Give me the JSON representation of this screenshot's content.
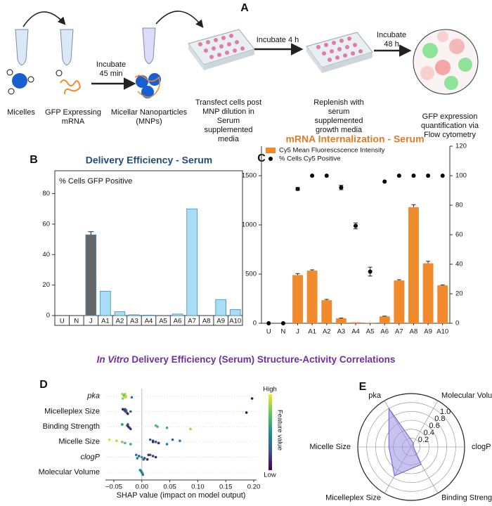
{
  "panel_labels": [
    "A",
    "B",
    "C",
    "D",
    "E"
  ],
  "workflow": {
    "reagents": [
      {
        "lines": [
          "Micelles"
        ]
      },
      {
        "lines": [
          "GFP Expressing",
          "mRNA"
        ]
      },
      {
        "lines": [
          "Micellar Nanoparticles",
          "(MNPs)"
        ]
      }
    ],
    "steps": [
      {
        "lines": [
          "Incubate",
          "45 min"
        ]
      },
      {
        "lines": [
          "Incubate 4 h"
        ]
      },
      {
        "lines": [
          "Incubate",
          "48 h"
        ]
      }
    ],
    "stages": [
      {
        "lines": [
          "Transfect cells post",
          "MNP dilution in",
          "Serum",
          "supplemented",
          "media"
        ]
      },
      {
        "lines": [
          "Replenish with",
          "serum",
          "supplemented",
          "growth media"
        ]
      },
      {
        "lines": [
          "GFP expression",
          "quantification via",
          "Flow cytometry"
        ]
      }
    ]
  },
  "section_title": {
    "italic": "In Vitro",
    "rest": " Delivery Efficiency (Serum) Structure-Activity Correlations"
  },
  "chart_data": [
    {
      "type": "bar",
      "title": "Delivery Efficiency - Serum",
      "ylabel": "% Cells GFP Positive",
      "categories": [
        "U",
        "N",
        "J",
        "A1",
        "A2",
        "A3",
        "A4",
        "A5",
        "A6",
        "A7",
        "A8",
        "A9",
        "A10"
      ],
      "values": [
        0,
        0,
        53,
        16,
        2.5,
        0.5,
        0.3,
        0,
        1,
        70,
        0,
        10.5,
        4
      ],
      "errors": [
        null,
        null,
        2,
        null,
        null,
        null,
        null,
        null,
        null,
        null,
        null,
        null,
        null
      ],
      "colors": [
        "#a9dcf5",
        "#a9dcf5",
        "#666666",
        "#a9dcf5",
        "#a9dcf5",
        "#a9dcf5",
        "#a9dcf5",
        "#a9dcf5",
        "#a9dcf5",
        "#a9dcf5",
        "#a9dcf5",
        "#a9dcf5",
        "#a9dcf5"
      ],
      "ylim": [
        0,
        95
      ],
      "yticks": [
        0,
        20,
        40,
        60,
        80
      ]
    },
    {
      "type": "combo",
      "title": "mRNA Internalization - Serum",
      "categories": [
        "U",
        "N",
        "J",
        "A1",
        "A2",
        "A3",
        "A4",
        "A5",
        "A6",
        "A7",
        "A8",
        "A9",
        "A10"
      ],
      "series": [
        {
          "name": "Cy5 Mean Fluorescscence Intensity",
          "kind": "bar",
          "color": "#f08a2c",
          "values": [
            0,
            0,
            490,
            535,
            235,
            50,
            10,
            5,
            70,
            435,
            1180,
            610,
            385
          ],
          "errors": [
            null,
            null,
            15,
            8,
            8,
            3,
            null,
            null,
            3,
            8,
            25,
            20,
            5
          ]
        },
        {
          "name": "% Cells Cy5 Positive",
          "kind": "scatter",
          "color": "#000000",
          "axis": "y2",
          "values": [
            0,
            0,
            91,
            100,
            100,
            92,
            66,
            35,
            96,
            100,
            100,
            100,
            100
          ],
          "errors": [
            null,
            null,
            1,
            null,
            null,
            1.5,
            2,
            3,
            null,
            null,
            null,
            null,
            null
          ]
        }
      ],
      "ylim": [
        0,
        1800
      ],
      "yticks": [
        0,
        500,
        1000,
        1500
      ],
      "y2lim": [
        0,
        120
      ],
      "y2ticks": [
        0,
        20,
        40,
        60,
        80,
        100,
        120
      ]
    },
    {
      "type": "beeswarm",
      "xlabel": "SHAP value (impact on model output)",
      "colorbar_label": "Feature value",
      "colorbar_high": "High",
      "colorbar_low": "Low",
      "colormap": [
        "#440154",
        "#3b528b",
        "#21918c",
        "#5ec962",
        "#fde725"
      ],
      "xlim": [
        -0.065,
        0.205
      ],
      "xticks": [
        {
          "value": -0.05,
          "label": "−0.05"
        },
        {
          "value": 0,
          "label": "0.00"
        },
        0.05,
        {
          "value": 0.1,
          "label": "0.10"
        },
        0.15,
        {
          "value": 0.2,
          "label": "0.20"
        }
      ],
      "features": [
        {
          "name": "pka",
          "x": [
            -0.035,
            -0.033,
            -0.031,
            -0.029,
            -0.034,
            -0.03,
            -0.032,
            -0.028,
            -0.018,
            0.197
          ],
          "feature_values": [
            0.9,
            0.95,
            0.85,
            0.9,
            0.8,
            0.88,
            0.75,
            0.92,
            0.4,
            0.05
          ]
        },
        {
          "name": "Micelleplex Size",
          "x": [
            -0.034,
            -0.031,
            -0.029,
            -0.027,
            -0.025,
            -0.03,
            -0.028,
            -0.02,
            0.187
          ],
          "feature_values": [
            0.1,
            0.2,
            0.15,
            0.3,
            0.1,
            0.2,
            0.25,
            0.3,
            0.05
          ]
        },
        {
          "name": "Binding Strength",
          "x": [
            -0.035,
            -0.026,
            -0.024,
            -0.022,
            -0.02,
            -0.025,
            0.025,
            0.028,
            0.045,
            0.087
          ],
          "feature_values": [
            0.5,
            0.3,
            0.1,
            0.2,
            0.15,
            0.25,
            0.7,
            0.65,
            0.6,
            0.85
          ]
        },
        {
          "name": "Micelle Size",
          "x": [
            -0.058,
            -0.045,
            -0.035,
            -0.03,
            -0.02,
            0.015,
            0.02,
            0.025,
            0.03,
            0.045,
            0.055,
            0.068,
            0.02,
            0.03
          ],
          "feature_values": [
            0.95,
            0.9,
            0.8,
            0.7,
            0.6,
            0.3,
            0.2,
            0.25,
            0.35,
            0.4,
            0.3,
            0.45,
            0.1,
            0.15
          ]
        },
        {
          "name": "clogP",
          "x": [
            -0.01,
            -0.005,
            0,
            0.005,
            0.01,
            0.015,
            0.02,
            0.025,
            -0.008,
            0.003,
            0.012
          ],
          "feature_values": [
            0.4,
            0.3,
            0.5,
            0.2,
            0.1,
            0.3,
            0.2,
            0.1,
            0.45,
            0.35,
            0.15
          ]
        },
        {
          "name": "Molecular Volume",
          "x": [
            -0.003,
            -0.001,
            0,
            0.001,
            0.002
          ],
          "feature_values": [
            0.4,
            0.45,
            0.5,
            0.4,
            0.45
          ]
        }
      ]
    },
    {
      "type": "radar",
      "axes": [
        "pka",
        "Molecular Volume",
        "clogP",
        "Binding Strength",
        "Micelleplex Size",
        "Micelle Size"
      ],
      "values": [
        1.0,
        0.1,
        0.05,
        0.45,
        0.75,
        0.5
      ],
      "color": "#9b8fe6",
      "rlim": [
        0,
        1.2
      ],
      "rticks": [
        0.2,
        0.4,
        0.6,
        0.8,
        {
          "value": 1,
          "label": "1.0"
        }
      ]
    }
  ]
}
